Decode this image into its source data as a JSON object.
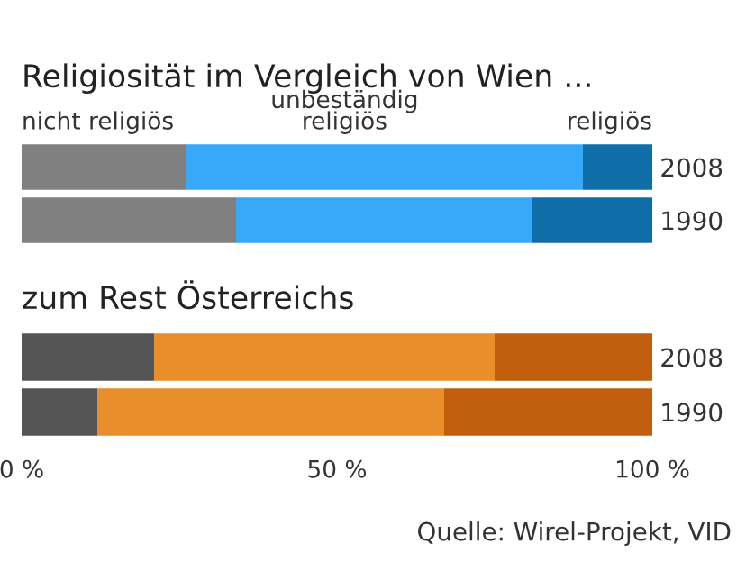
{
  "chart_data": [
    {
      "type": "bar",
      "orientation": "horizontal",
      "stacked": true,
      "title": "Religiosität im Vergleich von Wien ...",
      "categories": [
        "2008",
        "1990"
      ],
      "xlim": [
        0,
        100
      ],
      "tick_labels": "y",
      "legend": false,
      "grid": false,
      "series": [
        {
          "name": "nicht religiös",
          "color": "#808080",
          "values": [
            26,
            34
          ]
        },
        {
          "name": "unbeständig\nreligiös",
          "color": "#36aaf8",
          "values": [
            63,
            47
          ]
        },
        {
          "name": "religiös",
          "color": "#0f6ea8",
          "values": [
            11,
            19
          ]
        }
      ]
    },
    {
      "type": "bar",
      "orientation": "horizontal",
      "stacked": true,
      "title": "zum Rest Österreichs",
      "categories": [
        "2008",
        "1990"
      ],
      "xlim": [
        0,
        100
      ],
      "xticks": [
        {
          "value": 0,
          "label": "0 %"
        },
        {
          "value": 50,
          "label": "50 %"
        },
        {
          "value": 100,
          "label": "100 %"
        }
      ],
      "legend": false,
      "grid": false,
      "annotations": [
        "Quelle: Wirel-Projekt, VID"
      ],
      "series": [
        {
          "color": "#555555",
          "values": [
            21,
            12
          ]
        },
        {
          "color": "#e88e2a",
          "values": [
            54,
            55
          ]
        },
        {
          "color": "#c05e0e",
          "values": [
            25,
            33
          ]
        }
      ]
    }
  ]
}
